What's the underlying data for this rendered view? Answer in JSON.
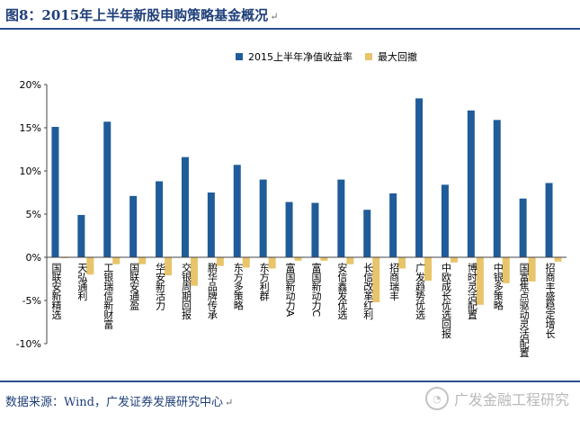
{
  "title": "图8：2015年上半年新股申购策略基金概况",
  "source": "数据来源：Wind，广发证券发展研究中心",
  "watermark": "广发金融工程研究",
  "colors": {
    "series1": "#1f5c99",
    "series2": "#e8c46a",
    "title": "#1f3f7a"
  },
  "chart_data": {
    "type": "bar",
    "title": "",
    "xlabel": "",
    "ylabel": "",
    "ylim": [
      -10,
      20
    ],
    "yticks": [
      "-10%",
      "-5%",
      "0%",
      "5%",
      "10%",
      "15%",
      "20%"
    ],
    "legend_position": "top-center",
    "categories": [
      "国联安新精选",
      "天弘通利",
      "工银瑞信新财富",
      "国联安通盈",
      "华安新活力",
      "交银周期回报",
      "鹏华品牌传承",
      "东方多策略",
      "东方利群",
      "富国新动力A",
      "富国新动力C",
      "安信鑫发优选",
      "长信改革红利",
      "招商瑞丰",
      "广发趋势优选",
      "中欧成长优选回报",
      "博时灵活配置",
      "中银多策略",
      "国富焦点驱动灵活配置",
      "招商丰盛稳定增长"
    ],
    "series": [
      {
        "name": "2015上半年净值收益率",
        "values": [
          15.1,
          4.9,
          15.7,
          7.1,
          8.8,
          11.6,
          7.5,
          10.7,
          9.0,
          6.4,
          6.3,
          9.0,
          5.5,
          7.4,
          18.4,
          8.4,
          17.0,
          15.9,
          6.8,
          8.6
        ]
      },
      {
        "name": "最大回撤",
        "values": [
          -0.1,
          -2.0,
          -0.8,
          -0.8,
          -2.1,
          -3.3,
          -1.0,
          -1.2,
          -1.3,
          -0.4,
          -0.4,
          -0.8,
          -5.2,
          -1.3,
          -2.7,
          -0.6,
          -5.5,
          -3.0,
          -2.8,
          -0.5
        ]
      }
    ]
  }
}
